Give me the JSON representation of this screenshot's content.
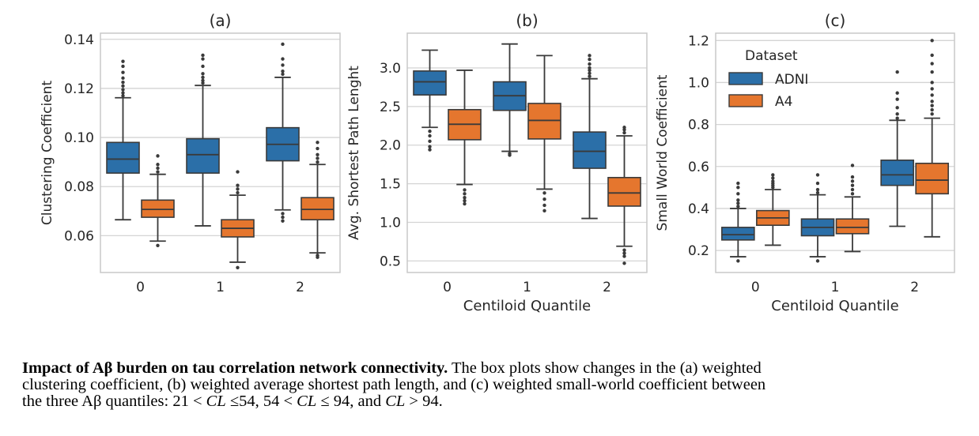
{
  "colors": {
    "ADNI": "#2b6fa8",
    "A4": "#e5762e",
    "grid": "#d4d4d4",
    "frame": "#c8c8c8",
    "whisker": "#3a3a3a"
  },
  "chart_data": [
    {
      "type": "box",
      "title": "(a)",
      "xlabel": "",
      "ylabel": "Clustering Coefficient",
      "categories": [
        "0",
        "1",
        "2"
      ],
      "ylim": [
        0.045,
        0.1425
      ],
      "yticks": [
        "0.06",
        "0.08",
        "0.10",
        "0.12",
        "0.14"
      ],
      "series": [
        {
          "name": "ADNI",
          "boxes": [
            {
              "category": "0",
              "whislo": 0.0665,
              "q1": 0.0855,
              "med": 0.0912,
              "q3": 0.098,
              "whishi": 0.1162,
              "fliers": [
                0.117,
                0.1182,
                0.1195,
                0.121,
                0.1225,
                0.1242,
                0.1265,
                0.129,
                0.131
              ]
            },
            {
              "category": "1",
              "whislo": 0.064,
              "q1": 0.0855,
              "med": 0.093,
              "q3": 0.0995,
              "whishi": 0.1212,
              "fliers": [
                0.1222,
                0.1232,
                0.1245,
                0.126,
                0.129,
                0.132,
                0.1335
              ]
            },
            {
              "category": "2",
              "whislo": 0.0705,
              "q1": 0.0905,
              "med": 0.0972,
              "q3": 0.104,
              "whishi": 0.1245,
              "fliers": [
                0.1258,
                0.127,
                0.1295,
                0.132,
                0.138,
                0.069,
                0.0675,
                0.066
              ]
            }
          ]
        },
        {
          "name": "A4",
          "boxes": [
            {
              "category": "0",
              "whislo": 0.0578,
              "q1": 0.0675,
              "med": 0.0707,
              "q3": 0.0745,
              "whishi": 0.085,
              "fliers": [
                0.086,
                0.0875,
                0.089,
                0.0925,
                0.056
              ]
            },
            {
              "category": "1",
              "whislo": 0.0492,
              "q1": 0.0595,
              "med": 0.063,
              "q3": 0.0665,
              "whishi": 0.0765,
              "fliers": [
                0.0775,
                0.079,
                0.0805,
                0.086,
                0.047
              ]
            },
            {
              "category": "2",
              "whislo": 0.053,
              "q1": 0.0665,
              "med": 0.0707,
              "q3": 0.0755,
              "whishi": 0.089,
              "fliers": [
                0.09,
                0.0915,
                0.093,
                0.0955,
                0.098,
                0.052,
                0.0512
              ]
            }
          ]
        }
      ]
    },
    {
      "type": "box",
      "title": "(b)",
      "xlabel": "Centiloid Quantile",
      "ylabel": "Avg. Shortest Path Lenght",
      "categories": [
        "0",
        "1",
        "2"
      ],
      "ylim": [
        0.35,
        3.45
      ],
      "yticks": [
        "0.5",
        "1.0",
        "1.5",
        "2.0",
        "2.5",
        "3.0"
      ],
      "series": [
        {
          "name": "ADNI",
          "boxes": [
            {
              "category": "0",
              "whislo": 2.23,
              "q1": 2.65,
              "med": 2.82,
              "q3": 2.96,
              "whishi": 3.23,
              "fliers": [
                2.18,
                2.12,
                2.05,
                1.98,
                1.94
              ]
            },
            {
              "category": "1",
              "whislo": 1.92,
              "q1": 2.45,
              "med": 2.64,
              "q3": 2.82,
              "whishi": 3.31,
              "fliers": [
                1.89,
                1.87
              ]
            },
            {
              "category": "2",
              "whislo": 1.05,
              "q1": 1.7,
              "med": 1.92,
              "q3": 2.17,
              "whishi": 2.86,
              "fliers": [
                2.89,
                2.93,
                2.97,
                3.0,
                3.05,
                3.11,
                3.16
              ]
            }
          ]
        },
        {
          "name": "A4",
          "boxes": [
            {
              "category": "0",
              "whislo": 1.49,
              "q1": 2.07,
              "med": 2.27,
              "q3": 2.46,
              "whishi": 2.97,
              "fliers": [
                1.42,
                1.37,
                1.32,
                1.28,
                1.24
              ]
            },
            {
              "category": "1",
              "whislo": 1.43,
              "q1": 2.08,
              "med": 2.32,
              "q3": 2.54,
              "whishi": 3.16,
              "fliers": [
                1.38,
                1.3,
                1.22,
                1.15
              ]
            },
            {
              "category": "2",
              "whislo": 0.69,
              "q1": 1.21,
              "med": 1.38,
              "q3": 1.58,
              "whishi": 2.12,
              "fliers": [
                2.16,
                2.2,
                2.23,
                0.64,
                0.6,
                0.56,
                0.47
              ]
            }
          ]
        }
      ]
    },
    {
      "type": "box",
      "title": "(c)",
      "xlabel": "Centiloid Quantile",
      "ylabel": "Small World Coefficient",
      "categories": [
        "0",
        "1",
        "2"
      ],
      "ylim": [
        0.095,
        1.235
      ],
      "yticks": [
        "0.2",
        "0.4",
        "0.6",
        "0.8",
        "1.0",
        "1.2"
      ],
      "legend": {
        "title": "Dataset",
        "entries": [
          "ADNI",
          "A4"
        ],
        "placement": "top-left"
      },
      "series": [
        {
          "name": "ADNI",
          "boxes": [
            {
              "category": "0",
              "whislo": 0.17,
              "q1": 0.25,
              "med": 0.275,
              "q3": 0.31,
              "whishi": 0.4,
              "fliers": [
                0.41,
                0.425,
                0.44,
                0.47,
                0.5,
                0.52,
                0.15
              ]
            },
            {
              "category": "1",
              "whislo": 0.17,
              "q1": 0.27,
              "med": 0.31,
              "q3": 0.35,
              "whishi": 0.465,
              "fliers": [
                0.475,
                0.49,
                0.52,
                0.56,
                0.15
              ]
            },
            {
              "category": "2",
              "whislo": 0.315,
              "q1": 0.51,
              "med": 0.56,
              "q3": 0.63,
              "whishi": 0.82,
              "fliers": [
                0.83,
                0.85,
                0.88,
                0.92,
                0.95,
                1.05
              ]
            }
          ]
        },
        {
          "name": "A4",
          "boxes": [
            {
              "category": "0",
              "whislo": 0.225,
              "q1": 0.32,
              "med": 0.355,
              "q3": 0.39,
              "whishi": 0.49,
              "fliers": [
                0.5,
                0.51,
                0.52,
                0.53,
                0.545,
                0.56
              ]
            },
            {
              "category": "1",
              "whislo": 0.195,
              "q1": 0.28,
              "med": 0.31,
              "q3": 0.35,
              "whishi": 0.455,
              "fliers": [
                0.47,
                0.49,
                0.51,
                0.53,
                0.55,
                0.605
              ]
            },
            {
              "category": "2",
              "whislo": 0.265,
              "q1": 0.47,
              "med": 0.535,
              "q3": 0.615,
              "whishi": 0.83,
              "fliers": [
                0.85,
                0.87,
                0.89,
                0.91,
                0.94,
                0.97,
                1.0,
                1.05,
                1.09,
                1.13,
                1.2
              ]
            }
          ]
        }
      ]
    }
  ],
  "caption": {
    "title": "Impact of Aβ  burden on tau correlation network connectivity.",
    "line1": " The box plots show changes in the (a) weighted",
    "line2": "clustering coefficient, (b) weighted average shortest path length, and (c) weighted small-world coefficient between",
    "line3_a": "the three Aβ quantiles:  21 < ",
    "cl": "CL",
    "line3_b": " ≤54, 54 < ",
    "line3_c": " ≤ 94, and ",
    "line3_d": " > 94."
  }
}
